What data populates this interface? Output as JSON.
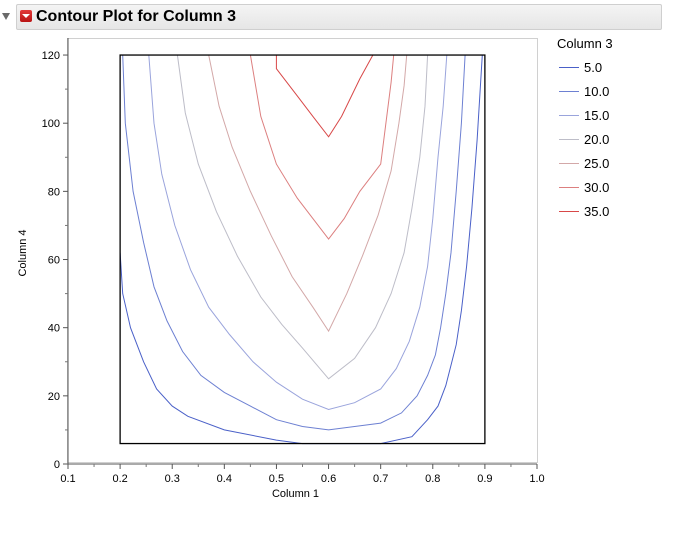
{
  "header": {
    "title": "Contour Plot for Column 3"
  },
  "legend": {
    "title": "Column 3"
  },
  "chart_data": {
    "type": "contour",
    "title": "Contour Plot for Column 3",
    "xlabel": "Column 1",
    "ylabel": "Column 4",
    "xlim": [
      0.1,
      1.0
    ],
    "ylim": [
      0,
      125
    ],
    "xticks": [
      "0.1",
      "0.2",
      "0.3",
      "0.4",
      "0.5",
      "0.6",
      "0.7",
      "0.8",
      "0.9",
      "1.0"
    ],
    "yticks": [
      "0",
      "20",
      "40",
      "60",
      "80",
      "100",
      "120"
    ],
    "data_region": {
      "x": [
        0.2,
        0.9
      ],
      "y": [
        6,
        120
      ]
    },
    "legend_title": "Column 3",
    "legend_position": "right",
    "series": [
      {
        "name": "5.0",
        "color": "#4a60c8",
        "points": [
          [
            0.2,
            62
          ],
          [
            0.205,
            50
          ],
          [
            0.22,
            40
          ],
          [
            0.245,
            30
          ],
          [
            0.27,
            22
          ],
          [
            0.3,
            17
          ],
          [
            0.33,
            14
          ],
          [
            0.4,
            10
          ],
          [
            0.5,
            7
          ],
          [
            0.55,
            6
          ],
          [
            0.7,
            6
          ],
          [
            0.76,
            8
          ],
          [
            0.79,
            13
          ],
          [
            0.81,
            17
          ],
          [
            0.825,
            23
          ],
          [
            0.835,
            29
          ],
          [
            0.845,
            35
          ],
          [
            0.855,
            45
          ],
          [
            0.865,
            58
          ],
          [
            0.875,
            75
          ],
          [
            0.885,
            95
          ],
          [
            0.895,
            120
          ]
        ]
      },
      {
        "name": "10.0",
        "color": "#6d80d2",
        "points": [
          [
            0.205,
            120
          ],
          [
            0.21,
            100
          ],
          [
            0.225,
            80
          ],
          [
            0.245,
            65
          ],
          [
            0.265,
            52
          ],
          [
            0.29,
            42
          ],
          [
            0.32,
            33
          ],
          [
            0.355,
            26
          ],
          [
            0.4,
            21
          ],
          [
            0.45,
            17
          ],
          [
            0.5,
            13
          ],
          [
            0.55,
            11
          ],
          [
            0.6,
            10
          ],
          [
            0.65,
            11
          ],
          [
            0.7,
            12
          ],
          [
            0.74,
            15
          ],
          [
            0.77,
            20
          ],
          [
            0.79,
            26
          ],
          [
            0.805,
            32
          ],
          [
            0.815,
            40
          ],
          [
            0.825,
            50
          ],
          [
            0.835,
            62
          ],
          [
            0.845,
            80
          ],
          [
            0.855,
            100
          ],
          [
            0.862,
            120
          ]
        ]
      },
      {
        "name": "15.0",
        "color": "#9aa4dc",
        "points": [
          [
            0.255,
            120
          ],
          [
            0.265,
            100
          ],
          [
            0.28,
            85
          ],
          [
            0.305,
            70
          ],
          [
            0.335,
            57
          ],
          [
            0.37,
            46
          ],
          [
            0.41,
            38
          ],
          [
            0.455,
            30
          ],
          [
            0.5,
            24
          ],
          [
            0.55,
            19
          ],
          [
            0.6,
            16
          ],
          [
            0.65,
            18
          ],
          [
            0.7,
            22
          ],
          [
            0.73,
            28
          ],
          [
            0.755,
            36
          ],
          [
            0.775,
            46
          ],
          [
            0.79,
            58
          ],
          [
            0.8,
            72
          ],
          [
            0.81,
            90
          ],
          [
            0.82,
            105
          ],
          [
            0.827,
            120
          ]
        ]
      },
      {
        "name": "20.0",
        "color": "#bdbdc8",
        "points": [
          [
            0.31,
            120
          ],
          [
            0.325,
            103
          ],
          [
            0.35,
            88
          ],
          [
            0.385,
            74
          ],
          [
            0.425,
            61
          ],
          [
            0.47,
            49
          ],
          [
            0.51,
            41
          ],
          [
            0.55,
            34
          ],
          [
            0.6,
            25
          ],
          [
            0.65,
            31
          ],
          [
            0.69,
            40
          ],
          [
            0.72,
            50
          ],
          [
            0.745,
            62
          ],
          [
            0.76,
            75
          ],
          [
            0.775,
            90
          ],
          [
            0.785,
            105
          ],
          [
            0.79,
            120
          ]
        ]
      },
      {
        "name": "25.0",
        "color": "#d3a8a8",
        "points": [
          [
            0.37,
            120
          ],
          [
            0.39,
            105
          ],
          [
            0.415,
            93
          ],
          [
            0.45,
            80
          ],
          [
            0.49,
            67
          ],
          [
            0.53,
            55
          ],
          [
            0.57,
            46
          ],
          [
            0.6,
            39
          ],
          [
            0.635,
            50
          ],
          [
            0.665,
            61
          ],
          [
            0.695,
            73
          ],
          [
            0.72,
            86
          ],
          [
            0.735,
            100
          ],
          [
            0.745,
            111
          ],
          [
            0.75,
            120
          ]
        ]
      },
      {
        "name": "30.0",
        "color": "#dc7f7f",
        "points": [
          [
            0.45,
            120
          ],
          [
            0.47,
            102
          ],
          [
            0.5,
            88
          ],
          [
            0.54,
            78
          ],
          [
            0.57,
            72
          ],
          [
            0.6,
            66
          ],
          [
            0.63,
            72
          ],
          [
            0.66,
            80
          ],
          [
            0.7,
            88
          ],
          [
            0.71,
            100
          ],
          [
            0.72,
            112
          ],
          [
            0.725,
            120
          ]
        ]
      },
      {
        "name": "35.0",
        "color": "#d84848",
        "points": [
          [
            0.5,
            120
          ],
          [
            0.5,
            116
          ],
          [
            0.54,
            108
          ],
          [
            0.57,
            102
          ],
          [
            0.6,
            96
          ],
          [
            0.625,
            102
          ],
          [
            0.66,
            113
          ],
          [
            0.685,
            120
          ]
        ]
      }
    ]
  }
}
